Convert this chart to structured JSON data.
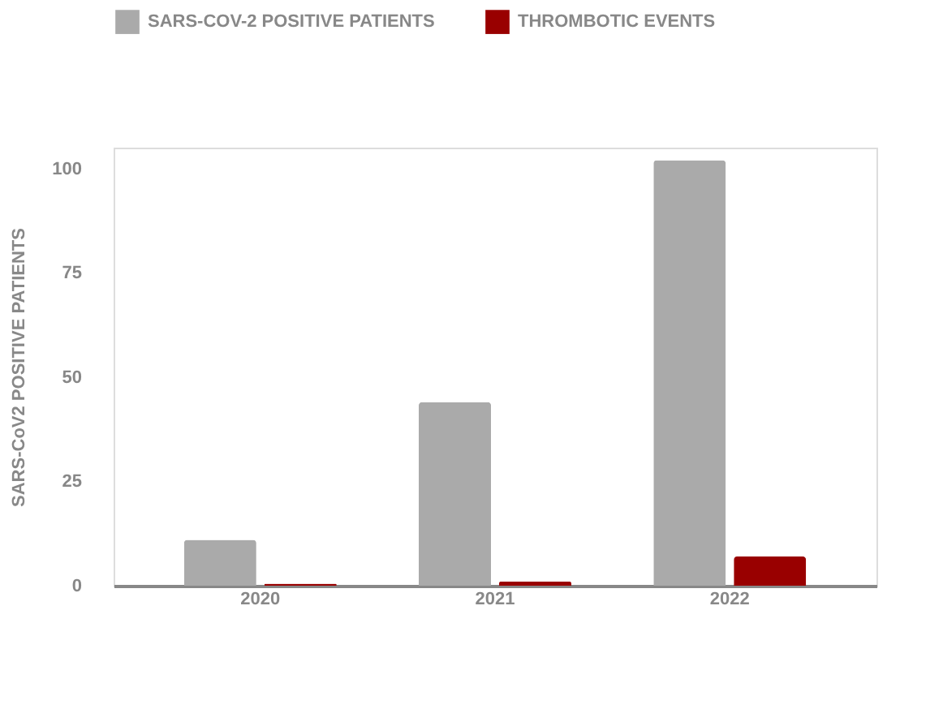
{
  "chart_data": {
    "type": "bar",
    "categories": [
      "2020",
      "2021",
      "2022"
    ],
    "series": [
      {
        "name": "SARS-COV-2 POSITIVE PATIENTS",
        "color": "#aaaaaa",
        "values": [
          11,
          44,
          102
        ]
      },
      {
        "name": "THROMBOTIC EVENTS",
        "color": "#990000",
        "values": [
          0.5,
          1,
          7
        ]
      }
    ],
    "ylabel": "SARS-CoV2 POSITIVE PATIENTS",
    "ylim": [
      0,
      105
    ],
    "yticks": [
      0,
      25,
      50,
      75,
      100
    ],
    "grid": false,
    "legend": "top"
  }
}
